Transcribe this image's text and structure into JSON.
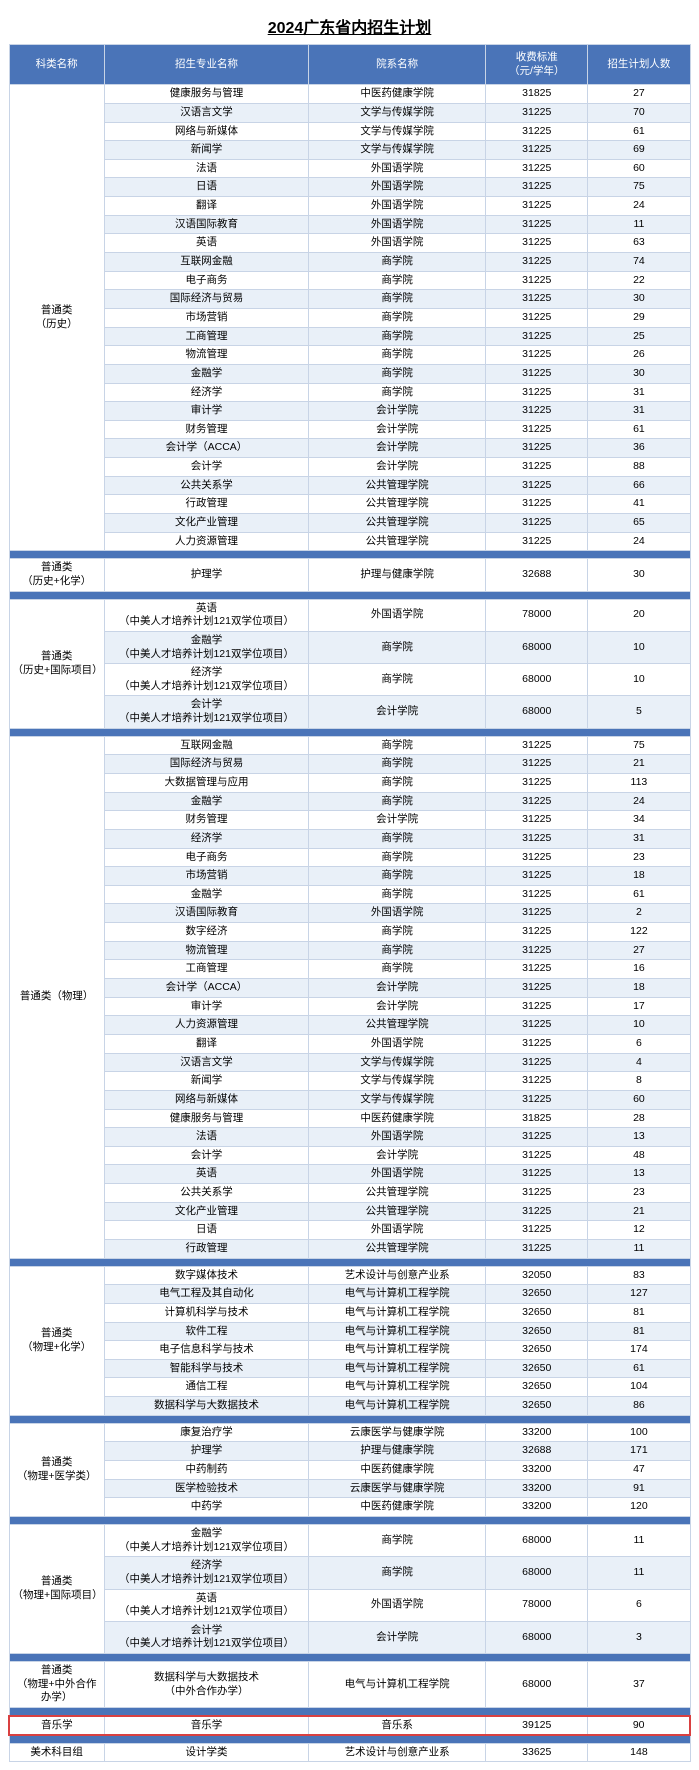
{
  "title": "2024广东省内招生计划",
  "colors": {
    "header_bg": "#4a74b8",
    "header_fg": "#ffffff",
    "row_even": "#e9f0f8",
    "row_odd": "#ffffff",
    "border": "#c8d4e6",
    "separator": "#4a74b8",
    "highlight": "#d94040"
  },
  "col_widths_pct": [
    14,
    30,
    26,
    15,
    15
  ],
  "headers": [
    "科类名称",
    "招生专业名称",
    "院系名称",
    "收费标准\n（元/学年）",
    "招生计划人数"
  ],
  "groups": [
    {
      "category": "普通类\n（历史）",
      "highlight": false,
      "rows": [
        {
          "major": "健康服务与管理",
          "dept": "中医药健康学院",
          "fee": "31825",
          "plan": "27"
        },
        {
          "major": "汉语言文学",
          "dept": "文学与传媒学院",
          "fee": "31225",
          "plan": "70"
        },
        {
          "major": "网络与新媒体",
          "dept": "文学与传媒学院",
          "fee": "31225",
          "plan": "61"
        },
        {
          "major": "新闻学",
          "dept": "文学与传媒学院",
          "fee": "31225",
          "plan": "69"
        },
        {
          "major": "法语",
          "dept": "外国语学院",
          "fee": "31225",
          "plan": "60"
        },
        {
          "major": "日语",
          "dept": "外国语学院",
          "fee": "31225",
          "plan": "75"
        },
        {
          "major": "翻译",
          "dept": "外国语学院",
          "fee": "31225",
          "plan": "24"
        },
        {
          "major": "汉语国际教育",
          "dept": "外国语学院",
          "fee": "31225",
          "plan": "11"
        },
        {
          "major": "英语",
          "dept": "外国语学院",
          "fee": "31225",
          "plan": "63"
        },
        {
          "major": "互联网金融",
          "dept": "商学院",
          "fee": "31225",
          "plan": "74"
        },
        {
          "major": "电子商务",
          "dept": "商学院",
          "fee": "31225",
          "plan": "22"
        },
        {
          "major": "国际经济与贸易",
          "dept": "商学院",
          "fee": "31225",
          "plan": "30"
        },
        {
          "major": "市场营销",
          "dept": "商学院",
          "fee": "31225",
          "plan": "29"
        },
        {
          "major": "工商管理",
          "dept": "商学院",
          "fee": "31225",
          "plan": "25"
        },
        {
          "major": "物流管理",
          "dept": "商学院",
          "fee": "31225",
          "plan": "26"
        },
        {
          "major": "金融学",
          "dept": "商学院",
          "fee": "31225",
          "plan": "30"
        },
        {
          "major": "经济学",
          "dept": "商学院",
          "fee": "31225",
          "plan": "31"
        },
        {
          "major": "审计学",
          "dept": "会计学院",
          "fee": "31225",
          "plan": "31"
        },
        {
          "major": "财务管理",
          "dept": "会计学院",
          "fee": "31225",
          "plan": "61"
        },
        {
          "major": "会计学（ACCA）",
          "dept": "会计学院",
          "fee": "31225",
          "plan": "36"
        },
        {
          "major": "会计学",
          "dept": "会计学院",
          "fee": "31225",
          "plan": "88"
        },
        {
          "major": "公共关系学",
          "dept": "公共管理学院",
          "fee": "31225",
          "plan": "66"
        },
        {
          "major": "行政管理",
          "dept": "公共管理学院",
          "fee": "31225",
          "plan": "41"
        },
        {
          "major": "文化产业管理",
          "dept": "公共管理学院",
          "fee": "31225",
          "plan": "65"
        },
        {
          "major": "人力资源管理",
          "dept": "公共管理学院",
          "fee": "31225",
          "plan": "24"
        }
      ]
    },
    {
      "category": "普通类\n（历史+化学）",
      "highlight": false,
      "rows": [
        {
          "major": "护理学",
          "dept": "护理与健康学院",
          "fee": "32688",
          "plan": "30"
        }
      ]
    },
    {
      "category": "普通类\n（历史+国际项目）",
      "highlight": false,
      "rows": [
        {
          "major": "英语\n（中美人才培养计划121双学位项目）",
          "dept": "外国语学院",
          "fee": "78000",
          "plan": "20"
        },
        {
          "major": "金融学\n（中美人才培养计划121双学位项目）",
          "dept": "商学院",
          "fee": "68000",
          "plan": "10"
        },
        {
          "major": "经济学\n（中美人才培养计划121双学位项目）",
          "dept": "商学院",
          "fee": "68000",
          "plan": "10"
        },
        {
          "major": "会计学\n（中美人才培养计划121双学位项目）",
          "dept": "会计学院",
          "fee": "68000",
          "plan": "5"
        }
      ]
    },
    {
      "category": "普通类（物理）",
      "highlight": false,
      "rows": [
        {
          "major": "互联网金融",
          "dept": "商学院",
          "fee": "31225",
          "plan": "75"
        },
        {
          "major": "国际经济与贸易",
          "dept": "商学院",
          "fee": "31225",
          "plan": "21"
        },
        {
          "major": "大数据管理与应用",
          "dept": "商学院",
          "fee": "31225",
          "plan": "113"
        },
        {
          "major": "金融学",
          "dept": "商学院",
          "fee": "31225",
          "plan": "24"
        },
        {
          "major": "财务管理",
          "dept": "会计学院",
          "fee": "31225",
          "plan": "34"
        },
        {
          "major": "经济学",
          "dept": "商学院",
          "fee": "31225",
          "plan": "31"
        },
        {
          "major": "电子商务",
          "dept": "商学院",
          "fee": "31225",
          "plan": "23"
        },
        {
          "major": "市场营销",
          "dept": "商学院",
          "fee": "31225",
          "plan": "18"
        },
        {
          "major": "金融学",
          "dept": "商学院",
          "fee": "31225",
          "plan": "61"
        },
        {
          "major": "汉语国际教育",
          "dept": "外国语学院",
          "fee": "31225",
          "plan": "2"
        },
        {
          "major": "数字经济",
          "dept": "商学院",
          "fee": "31225",
          "plan": "122"
        },
        {
          "major": "物流管理",
          "dept": "商学院",
          "fee": "31225",
          "plan": "27"
        },
        {
          "major": "工商管理",
          "dept": "商学院",
          "fee": "31225",
          "plan": "16"
        },
        {
          "major": "会计学（ACCA）",
          "dept": "会计学院",
          "fee": "31225",
          "plan": "18"
        },
        {
          "major": "审计学",
          "dept": "会计学院",
          "fee": "31225",
          "plan": "17"
        },
        {
          "major": "人力资源管理",
          "dept": "公共管理学院",
          "fee": "31225",
          "plan": "10"
        },
        {
          "major": "翻译",
          "dept": "外国语学院",
          "fee": "31225",
          "plan": "6"
        },
        {
          "major": "汉语言文学",
          "dept": "文学与传媒学院",
          "fee": "31225",
          "plan": "4"
        },
        {
          "major": "新闻学",
          "dept": "文学与传媒学院",
          "fee": "31225",
          "plan": "8"
        },
        {
          "major": "网络与新媒体",
          "dept": "文学与传媒学院",
          "fee": "31225",
          "plan": "60"
        },
        {
          "major": "健康服务与管理",
          "dept": "中医药健康学院",
          "fee": "31825",
          "plan": "28"
        },
        {
          "major": "法语",
          "dept": "外国语学院",
          "fee": "31225",
          "plan": "13"
        },
        {
          "major": "会计学",
          "dept": "会计学院",
          "fee": "31225",
          "plan": "48"
        },
        {
          "major": "英语",
          "dept": "外国语学院",
          "fee": "31225",
          "plan": "13"
        },
        {
          "major": "公共关系学",
          "dept": "公共管理学院",
          "fee": "31225",
          "plan": "23"
        },
        {
          "major": "文化产业管理",
          "dept": "公共管理学院",
          "fee": "31225",
          "plan": "21"
        },
        {
          "major": "日语",
          "dept": "外国语学院",
          "fee": "31225",
          "plan": "12"
        },
        {
          "major": "行政管理",
          "dept": "公共管理学院",
          "fee": "31225",
          "plan": "11"
        }
      ]
    },
    {
      "category": "普通类\n（物理+化学）",
      "highlight": false,
      "rows": [
        {
          "major": "数字媒体技术",
          "dept": "艺术设计与创意产业系",
          "fee": "32050",
          "plan": "83"
        },
        {
          "major": "电气工程及其自动化",
          "dept": "电气与计算机工程学院",
          "fee": "32650",
          "plan": "127"
        },
        {
          "major": "计算机科学与技术",
          "dept": "电气与计算机工程学院",
          "fee": "32650",
          "plan": "81"
        },
        {
          "major": "软件工程",
          "dept": "电气与计算机工程学院",
          "fee": "32650",
          "plan": "81"
        },
        {
          "major": "电子信息科学与技术",
          "dept": "电气与计算机工程学院",
          "fee": "32650",
          "plan": "174"
        },
        {
          "major": "智能科学与技术",
          "dept": "电气与计算机工程学院",
          "fee": "32650",
          "plan": "61"
        },
        {
          "major": "通信工程",
          "dept": "电气与计算机工程学院",
          "fee": "32650",
          "plan": "104"
        },
        {
          "major": "数据科学与大数据技术",
          "dept": "电气与计算机工程学院",
          "fee": "32650",
          "plan": "86"
        }
      ]
    },
    {
      "category": "普通类\n（物理+医学类）",
      "highlight": false,
      "rows": [
        {
          "major": "康复治疗学",
          "dept": "云康医学与健康学院",
          "fee": "33200",
          "plan": "100"
        },
        {
          "major": "护理学",
          "dept": "护理与健康学院",
          "fee": "32688",
          "plan": "171"
        },
        {
          "major": "中药制药",
          "dept": "中医药健康学院",
          "fee": "33200",
          "plan": "47"
        },
        {
          "major": "医学检验技术",
          "dept": "云康医学与健康学院",
          "fee": "33200",
          "plan": "91"
        },
        {
          "major": "中药学",
          "dept": "中医药健康学院",
          "fee": "33200",
          "plan": "120"
        }
      ]
    },
    {
      "category": "普通类\n（物理+国际项目）",
      "highlight": false,
      "rows": [
        {
          "major": "金融学\n（中美人才培养计划121双学位项目）",
          "dept": "商学院",
          "fee": "68000",
          "plan": "11"
        },
        {
          "major": "经济学\n（中美人才培养计划121双学位项目）",
          "dept": "商学院",
          "fee": "68000",
          "plan": "11"
        },
        {
          "major": "英语\n（中美人才培养计划121双学位项目）",
          "dept": "外国语学院",
          "fee": "78000",
          "plan": "6"
        },
        {
          "major": "会计学\n（中美人才培养计划121双学位项目）",
          "dept": "会计学院",
          "fee": "68000",
          "plan": "3"
        }
      ]
    },
    {
      "category": "普通类\n（物理+中外合作办学）",
      "highlight": false,
      "rows": [
        {
          "major": "数据科学与大数据技术\n（中外合作办学）",
          "dept": "电气与计算机工程学院",
          "fee": "68000",
          "plan": "37"
        }
      ]
    },
    {
      "category": "音乐学",
      "highlight": true,
      "rows": [
        {
          "major": "音乐学",
          "dept": "音乐系",
          "fee": "39125",
          "plan": "90"
        }
      ]
    },
    {
      "category": "美术科目组",
      "highlight": false,
      "rows": [
        {
          "major": "设计学类",
          "dept": "艺术设计与创意产业系",
          "fee": "33625",
          "plan": "148"
        }
      ]
    }
  ]
}
